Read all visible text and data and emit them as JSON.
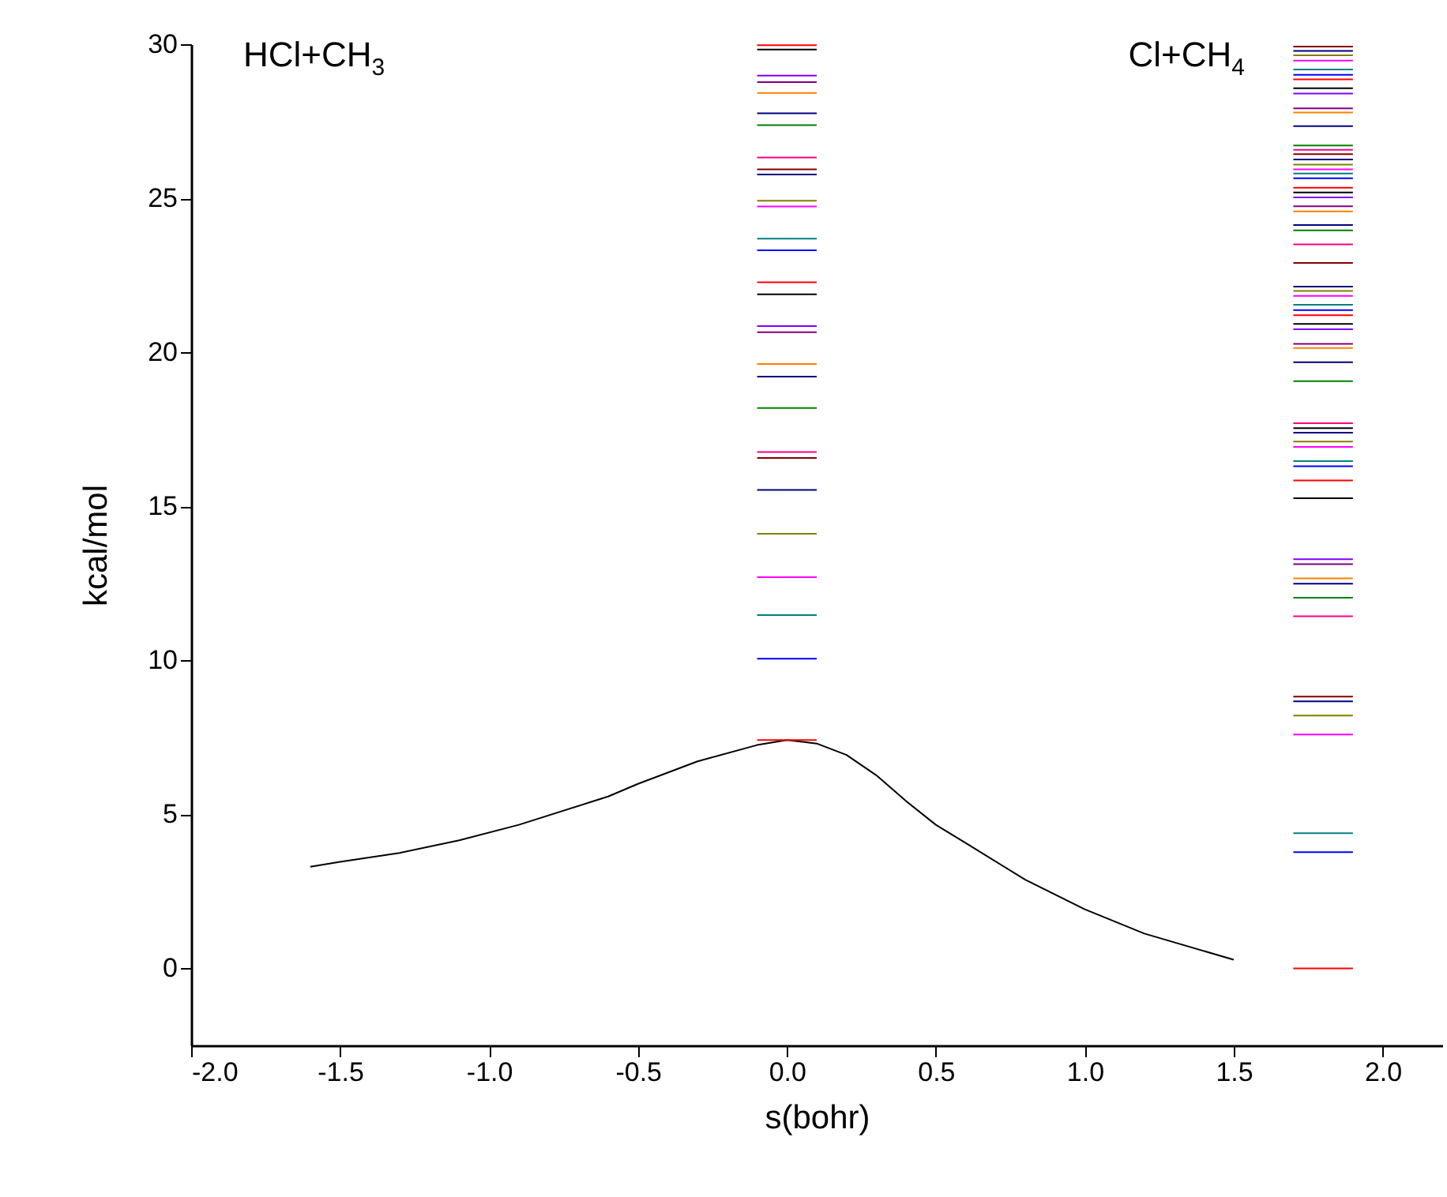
{
  "chart_data": {
    "type": "line",
    "xlabel": "s(bohr)",
    "ylabel": "kcal/mol",
    "annotations": [
      "HCl+CH$_{3}$",
      "Cl+CH$_{4}$"
    ],
    "xlim": [
      -2,
      2.2
    ],
    "ylim": [
      -2.5,
      30
    ],
    "xticks": [
      {
        "value": -2,
        "label": "-2.0"
      },
      {
        "value": -1.5,
        "label": "-1.5"
      },
      {
        "value": -1,
        "label": "-1.0"
      },
      {
        "value": -0.5,
        "label": "-0.5"
      },
      {
        "value": 0,
        "label": "0.0"
      },
      {
        "value": 0.5,
        "label": "0.5"
      },
      {
        "value": 1,
        "label": "1.0"
      },
      {
        "value": 1.5,
        "label": "1.5"
      },
      {
        "value": 2,
        "label": "2.0"
      }
    ],
    "yticks": [
      0,
      5,
      10,
      15,
      20,
      25,
      30
    ],
    "grid": false,
    "legend": false,
    "series": [
      {
        "color": "#000000",
        "x": [
          -1.6,
          -1.5,
          -1.3,
          -1.1,
          -0.9,
          -0.6,
          -0.5,
          -0.3,
          -0.1,
          0,
          0.1,
          0.2,
          0.3,
          0.4,
          0.5,
          0.6,
          0.8,
          1.0,
          1.2,
          1.5
        ],
        "values": [
          3.3,
          3.46,
          3.75,
          4.16,
          4.66,
          5.58,
          5.99,
          6.72,
          7.25,
          7.41,
          7.3,
          6.93,
          6.27,
          5.43,
          4.66,
          4.07,
          2.88,
          1.92,
          1.13,
          0.28
        ]
      },
      {
        "color": "#ff0000",
        "x": [
          -0.1,
          0.1
        ],
        "values": [
          7.41,
          7.41
        ]
      },
      {
        "color": "#0000ff",
        "x": [
          -0.1,
          0.1
        ],
        "values": [
          10.05,
          10.05
        ]
      },
      {
        "color": "#008080",
        "x": [
          -0.1,
          0.1
        ],
        "values": [
          11.47,
          11.47
        ]
      },
      {
        "color": "#ff00ff",
        "x": [
          -0.1,
          0.1
        ],
        "values": [
          12.7,
          12.7
        ]
      },
      {
        "color": "#808000",
        "x": [
          -0.1,
          0.1
        ],
        "values": [
          14.11,
          14.11
        ]
      },
      {
        "color": "#000080",
        "x": [
          -0.1,
          0.1
        ],
        "values": [
          15.53,
          15.53
        ]
      },
      {
        "color": "#800000",
        "x": [
          -0.1,
          0.1
        ],
        "values": [
          16.57,
          16.57
        ]
      },
      {
        "color": "#ff0080",
        "x": [
          -0.1,
          0.1
        ],
        "values": [
          16.76,
          16.76
        ]
      },
      {
        "color": "#008000",
        "x": [
          -0.1,
          0.1
        ],
        "values": [
          18.19,
          18.19
        ]
      },
      {
        "color": "#000080",
        "x": [
          -0.1,
          0.1
        ],
        "values": [
          19.21,
          19.21
        ]
      },
      {
        "color": "#ff8000",
        "x": [
          -0.1,
          0.1
        ],
        "values": [
          19.62,
          19.62
        ]
      },
      {
        "color": "#800080",
        "x": [
          -0.1,
          0.1
        ],
        "values": [
          20.65,
          20.65
        ]
      },
      {
        "color": "#8000ff",
        "x": [
          -0.1,
          0.1
        ],
        "values": [
          20.85,
          20.85
        ]
      },
      {
        "color": "#000000",
        "x": [
          -0.1,
          0.1
        ],
        "values": [
          21.88,
          21.88
        ]
      },
      {
        "color": "#ff0000",
        "x": [
          -0.1,
          0.1
        ],
        "values": [
          22.27,
          22.27
        ]
      },
      {
        "color": "#0000ff",
        "x": [
          -0.1,
          0.1
        ],
        "values": [
          23.31,
          23.31
        ]
      },
      {
        "color": "#008080",
        "x": [
          -0.1,
          0.1
        ],
        "values": [
          23.69,
          23.69
        ]
      },
      {
        "color": "#ff00ff",
        "x": [
          -0.1,
          0.1
        ],
        "values": [
          24.73,
          24.73
        ]
      },
      {
        "color": "#808000",
        "x": [
          -0.1,
          0.1
        ],
        "values": [
          24.92,
          24.92
        ]
      },
      {
        "color": "#000080",
        "x": [
          -0.1,
          0.1
        ],
        "values": [
          25.77,
          25.77
        ]
      },
      {
        "color": "#800000",
        "x": [
          -0.1,
          0.1
        ],
        "values": [
          25.94,
          25.94
        ]
      },
      {
        "color": "#ff0080",
        "x": [
          -0.1,
          0.1
        ],
        "values": [
          26.32,
          26.32
        ]
      },
      {
        "color": "#008000",
        "x": [
          -0.1,
          0.1
        ],
        "values": [
          27.37,
          27.37
        ]
      },
      {
        "color": "#000080",
        "x": [
          -0.1,
          0.1
        ],
        "values": [
          27.76,
          27.76
        ]
      },
      {
        "color": "#ff8000",
        "x": [
          -0.1,
          0.1
        ],
        "values": [
          28.42,
          28.42
        ]
      },
      {
        "color": "#800080",
        "x": [
          -0.1,
          0.1
        ],
        "values": [
          28.77,
          28.77
        ]
      },
      {
        "color": "#8000ff",
        "x": [
          -0.1,
          0.1
        ],
        "values": [
          28.98,
          28.98
        ]
      },
      {
        "color": "#000000",
        "x": [
          -0.1,
          0.1
        ],
        "values": [
          29.83,
          29.83
        ]
      },
      {
        "color": "#ff0000",
        "x": [
          -0.1,
          0.1
        ],
        "values": [
          29.97,
          29.97
        ]
      },
      {
        "color": "#ff0000",
        "x": [
          1.7,
          1.9
        ],
        "values": [
          0,
          0
        ]
      },
      {
        "color": "#0000ff",
        "x": [
          1.7,
          1.9
        ],
        "values": [
          3.77,
          3.77
        ]
      },
      {
        "color": "#008080",
        "x": [
          1.7,
          1.9
        ],
        "values": [
          4.39,
          4.39
        ]
      },
      {
        "color": "#ff00ff",
        "x": [
          1.7,
          1.9
        ],
        "values": [
          7.59,
          7.59
        ]
      },
      {
        "color": "#808000",
        "x": [
          1.7,
          1.9
        ],
        "values": [
          8.21,
          8.21
        ]
      },
      {
        "color": "#000080",
        "x": [
          1.7,
          1.9
        ],
        "values": [
          8.67,
          8.67
        ]
      },
      {
        "color": "#800000",
        "x": [
          1.7,
          1.9
        ],
        "values": [
          8.82,
          8.82
        ]
      },
      {
        "color": "#ff0080",
        "x": [
          1.7,
          1.9
        ],
        "values": [
          11.43,
          11.43
        ]
      },
      {
        "color": "#008000",
        "x": [
          1.7,
          1.9
        ],
        "values": [
          12.03,
          12.03
        ]
      },
      {
        "color": "#000080",
        "x": [
          1.7,
          1.9
        ],
        "values": [
          12.49,
          12.49
        ]
      },
      {
        "color": "#ff8000",
        "x": [
          1.7,
          1.9
        ],
        "values": [
          12.66,
          12.66
        ]
      },
      {
        "color": "#800080",
        "x": [
          1.7,
          1.9
        ],
        "values": [
          13.12,
          13.12
        ]
      },
      {
        "color": "#8000ff",
        "x": [
          1.7,
          1.9
        ],
        "values": [
          13.28,
          13.28
        ]
      },
      {
        "color": "#000000",
        "x": [
          1.7,
          1.9
        ],
        "values": [
          15.26,
          15.26
        ]
      },
      {
        "color": "#ff0000",
        "x": [
          1.7,
          1.9
        ],
        "values": [
          15.84,
          15.84
        ]
      },
      {
        "color": "#0000ff",
        "x": [
          1.7,
          1.9
        ],
        "values": [
          16.3,
          16.3
        ]
      },
      {
        "color": "#008080",
        "x": [
          1.7,
          1.9
        ],
        "values": [
          16.47,
          16.47
        ]
      },
      {
        "color": "#ff00ff",
        "x": [
          1.7,
          1.9
        ],
        "values": [
          16.93,
          16.93
        ]
      },
      {
        "color": "#808000",
        "x": [
          1.7,
          1.9
        ],
        "values": [
          17.1,
          17.1
        ]
      },
      {
        "color": "#000080",
        "x": [
          1.7,
          1.9
        ],
        "values": [
          17.39,
          17.39
        ]
      },
      {
        "color": "#000000",
        "x": [
          1.7,
          1.9
        ],
        "values": [
          17.54,
          17.54
        ]
      },
      {
        "color": "#ff0080",
        "x": [
          1.7,
          1.9
        ],
        "values": [
          17.7,
          17.7
        ]
      },
      {
        "color": "#008000",
        "x": [
          1.7,
          1.9
        ],
        "values": [
          19.06,
          19.06
        ]
      },
      {
        "color": "#000080",
        "x": [
          1.7,
          1.9
        ],
        "values": [
          19.68,
          19.68
        ]
      },
      {
        "color": "#ff8000",
        "x": [
          1.7,
          1.9
        ],
        "values": [
          20.14,
          20.14
        ]
      },
      {
        "color": "#800080",
        "x": [
          1.7,
          1.9
        ],
        "values": [
          20.27,
          20.27
        ]
      },
      {
        "color": "#8000ff",
        "x": [
          1.7,
          1.9
        ],
        "values": [
          20.75,
          20.75
        ]
      },
      {
        "color": "#000000",
        "x": [
          1.7,
          1.9
        ],
        "values": [
          20.92,
          20.92
        ]
      },
      {
        "color": "#ff0000",
        "x": [
          1.7,
          1.9
        ],
        "values": [
          21.2,
          21.2
        ]
      },
      {
        "color": "#0000ff",
        "x": [
          1.7,
          1.9
        ],
        "values": [
          21.37,
          21.37
        ]
      },
      {
        "color": "#008080",
        "x": [
          1.7,
          1.9
        ],
        "values": [
          21.54,
          21.54
        ]
      },
      {
        "color": "#ff00ff",
        "x": [
          1.7,
          1.9
        ],
        "values": [
          21.83,
          21.83
        ]
      },
      {
        "color": "#808000",
        "x": [
          1.7,
          1.9
        ],
        "values": [
          21.99,
          21.99
        ]
      },
      {
        "color": "#000080",
        "x": [
          1.7,
          1.9
        ],
        "values": [
          22.13,
          22.13
        ]
      },
      {
        "color": "#800000",
        "x": [
          1.7,
          1.9
        ],
        "values": [
          22.9,
          22.9
        ]
      },
      {
        "color": "#ff0080",
        "x": [
          1.7,
          1.9
        ],
        "values": [
          23.5,
          23.5
        ]
      },
      {
        "color": "#008000",
        "x": [
          1.7,
          1.9
        ],
        "values": [
          23.96,
          23.96
        ]
      },
      {
        "color": "#000080",
        "x": [
          1.7,
          1.9
        ],
        "values": [
          24.13,
          24.13
        ]
      },
      {
        "color": "#ff8000",
        "x": [
          1.7,
          1.9
        ],
        "values": [
          24.57,
          24.57
        ]
      },
      {
        "color": "#800080",
        "x": [
          1.7,
          1.9
        ],
        "values": [
          24.74,
          24.74
        ]
      },
      {
        "color": "#8000ff",
        "x": [
          1.7,
          1.9
        ],
        "values": [
          25.03,
          25.03
        ]
      },
      {
        "color": "#000000",
        "x": [
          1.7,
          1.9
        ],
        "values": [
          25.19,
          25.19
        ]
      },
      {
        "color": "#ff0000",
        "x": [
          1.7,
          1.9
        ],
        "values": [
          25.34,
          25.34
        ]
      },
      {
        "color": "#0000ff",
        "x": [
          1.7,
          1.9
        ],
        "values": [
          25.65,
          25.65
        ]
      },
      {
        "color": "#008080",
        "x": [
          1.7,
          1.9
        ],
        "values": [
          25.8,
          25.8
        ]
      },
      {
        "color": "#ff00ff",
        "x": [
          1.7,
          1.9
        ],
        "values": [
          25.94,
          25.94
        ]
      },
      {
        "color": "#808000",
        "x": [
          1.7,
          1.9
        ],
        "values": [
          26.09,
          26.09
        ]
      },
      {
        "color": "#000080",
        "x": [
          1.7,
          1.9
        ],
        "values": [
          26.26,
          26.26
        ]
      },
      {
        "color": "#800000",
        "x": [
          1.7,
          1.9
        ],
        "values": [
          26.43,
          26.43
        ]
      },
      {
        "color": "#ff0080",
        "x": [
          1.7,
          1.9
        ],
        "values": [
          26.57,
          26.57
        ]
      },
      {
        "color": "#008000",
        "x": [
          1.7,
          1.9
        ],
        "values": [
          26.71,
          26.71
        ]
      },
      {
        "color": "#000080",
        "x": [
          1.7,
          1.9
        ],
        "values": [
          27.34,
          27.34
        ]
      },
      {
        "color": "#ff8000",
        "x": [
          1.7,
          1.9
        ],
        "values": [
          27.78,
          27.78
        ]
      },
      {
        "color": "#800080",
        "x": [
          1.7,
          1.9
        ],
        "values": [
          27.92,
          27.92
        ]
      },
      {
        "color": "#8000ff",
        "x": [
          1.7,
          1.9
        ],
        "values": [
          28.4,
          28.4
        ]
      },
      {
        "color": "#000000",
        "x": [
          1.7,
          1.9
        ],
        "values": [
          28.57,
          28.57
        ]
      },
      {
        "color": "#ff0000",
        "x": [
          1.7,
          1.9
        ],
        "values": [
          28.86,
          28.86
        ]
      },
      {
        "color": "#0000ff",
        "x": [
          1.7,
          1.9
        ],
        "values": [
          29.01,
          29.01
        ]
      },
      {
        "color": "#008080",
        "x": [
          1.7,
          1.9
        ],
        "values": [
          29.18,
          29.18
        ]
      },
      {
        "color": "#ff00ff",
        "x": [
          1.7,
          1.9
        ],
        "values": [
          29.47,
          29.47
        ]
      },
      {
        "color": "#808000",
        "x": [
          1.7,
          1.9
        ],
        "values": [
          29.64,
          29.64
        ]
      },
      {
        "color": "#000080",
        "x": [
          1.7,
          1.9
        ],
        "values": [
          29.78,
          29.78
        ]
      },
      {
        "color": "#800000",
        "x": [
          1.7,
          1.9
        ],
        "values": [
          29.92,
          29.92
        ]
      }
    ]
  }
}
